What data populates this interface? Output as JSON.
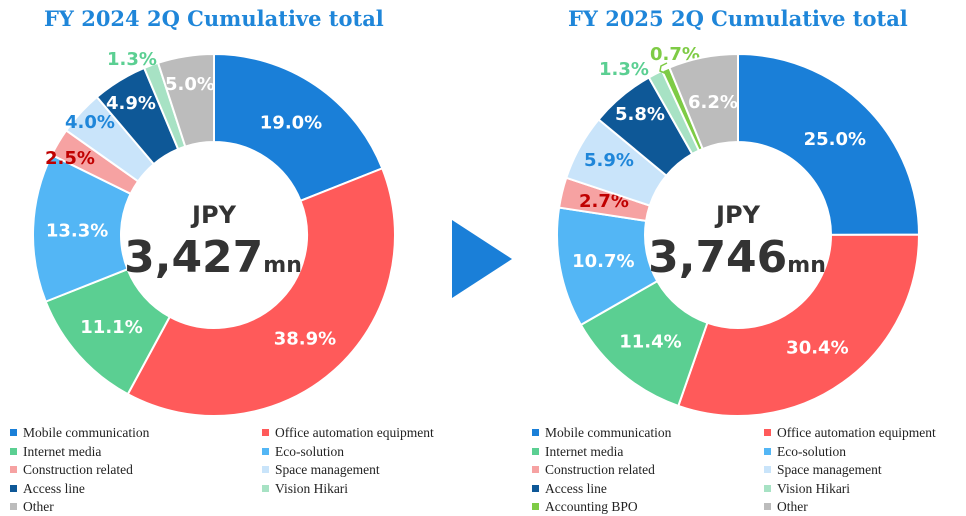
{
  "chart_data": [
    {
      "type": "pie",
      "title": "FY 2024 2Q Cumulative total",
      "center_label_top": "JPY",
      "center_value": "3,427",
      "center_unit": "mn",
      "categories": [
        "Mobile communication",
        "Office automation equipment",
        "Internet media",
        "Eco-solution",
        "Construction related",
        "Space management",
        "Access line",
        "Vision Hikari",
        "Other"
      ],
      "values": [
        19.0,
        38.9,
        11.1,
        13.3,
        2.5,
        4.0,
        4.9,
        1.3,
        5.0
      ],
      "labels": [
        "19.0%",
        "38.9%",
        "11.1%",
        "13.3%",
        "2.5%",
        "4.0%",
        "4.9%",
        "1.3%",
        "5.0%"
      ],
      "colors": [
        "#1a7fd8",
        "#ff5a5a",
        "#5bcf92",
        "#53b6f5",
        "#f6a2a2",
        "#c9e4fa",
        "#0e5897",
        "#a7e2c4",
        "#bcbcbc"
      ]
    },
    {
      "type": "pie",
      "title": "FY 2025 2Q Cumulative total",
      "center_label_top": "JPY",
      "center_value": "3,746",
      "center_unit": "mn",
      "categories": [
        "Mobile communication",
        "Office automation equipment",
        "Internet media",
        "Eco-solution",
        "Construction related",
        "Space management",
        "Access line",
        "Vision Hikari",
        "Accounting BPO",
        "Other"
      ],
      "values": [
        25.0,
        30.4,
        11.4,
        10.7,
        2.7,
        5.9,
        5.8,
        1.3,
        0.7,
        6.2
      ],
      "labels": [
        "25.0%",
        "30.4%",
        "11.4%",
        "10.7%",
        "2.7%",
        "5.9%",
        "5.8%",
        "1.3%",
        "0.7%",
        "6.2%"
      ],
      "colors": [
        "#1a7fd8",
        "#ff5a5a",
        "#5bcf92",
        "#53b6f5",
        "#f6a2a2",
        "#c9e4fa",
        "#0e5897",
        "#a7e2c4",
        "#7ecb45",
        "#bcbcbc"
      ]
    }
  ],
  "arrow_color": "#1a7fd8",
  "label_colors": {
    "white": "#ffffff",
    "Construction related": "#c00000",
    "Space management": "#1f86d9",
    "Vision Hikari": "#5bcf92",
    "Accounting BPO": "#7ecb45"
  }
}
